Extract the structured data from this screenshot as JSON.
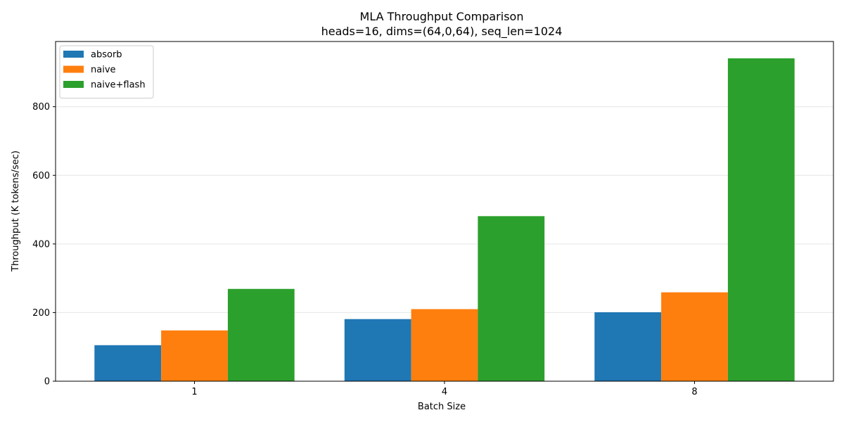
{
  "chart_data": {
    "type": "bar",
    "title": "MLA Throughput Comparison",
    "subtitle": "heads=16, dims=(64,0,64), seq_len=1024",
    "xlabel": "Batch Size",
    "ylabel": "Throughput (K tokens/sec)",
    "categories": [
      "1",
      "4",
      "8"
    ],
    "series": [
      {
        "name": "absorb",
        "color": "#1f77b4",
        "values": [
          105,
          181,
          201
        ]
      },
      {
        "name": "naive",
        "color": "#ff7f0e",
        "values": [
          148,
          210,
          259
        ]
      },
      {
        "name": "naive+flash",
        "color": "#2ca02c",
        "values": [
          269,
          481,
          941
        ]
      }
    ],
    "ylim": [
      0,
      990
    ],
    "yticks": [
      0,
      200,
      400,
      600,
      800
    ],
    "grid": "y",
    "legend_position": "top-left"
  }
}
